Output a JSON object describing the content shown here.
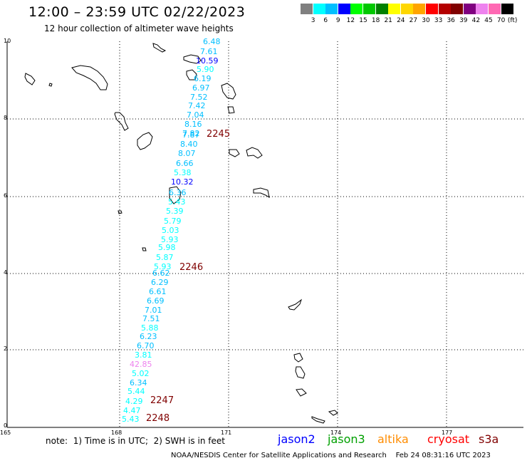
{
  "title": "12:00 – 23:59 UTC 02/22/2023",
  "subtitle": "12 hour collection of altimeter wave heights",
  "scale": {
    "unit": "(ft)",
    "colors": [
      "#808080",
      "#00ffff",
      "#00bfff",
      "#0000ff",
      "#00ff00",
      "#00c800",
      "#008000",
      "#ffff00",
      "#ffd700",
      "#ffa500",
      "#ff0000",
      "#b40000",
      "#800000",
      "#800080",
      "#ee82ee",
      "#ff69b4",
      "#000000"
    ],
    "labels": [
      "3",
      "6",
      "9",
      "12",
      "15",
      "18",
      "21",
      "24",
      "27",
      "30",
      "33",
      "36",
      "39",
      "42",
      "45",
      "70"
    ]
  },
  "axes": {
    "y_ticks": [
      "10",
      "8",
      "6",
      "4",
      "2",
      "0"
    ],
    "x_ticks": [
      "165",
      "168",
      "171",
      "174",
      "177"
    ]
  },
  "pass_labels": [
    "2245",
    "2246",
    "2247",
    "2248"
  ],
  "readings": [
    "6.48",
    "7.61",
    "10.59",
    "5.90",
    "6.19",
    "6.97",
    "7.52",
    "7.42",
    "7.04",
    "8.16",
    "7.82",
    "7.87",
    "8.40",
    "8.07",
    "6.66",
    "5.38",
    "10.32",
    "6.36",
    "5.43",
    "5.39",
    "5.79",
    "5.03",
    "5.93",
    "5.98",
    "5.87",
    "5.93",
    "6.62",
    "6.29",
    "6.61",
    "6.69",
    "7.01",
    "7.51",
    "5.88",
    "6.23",
    "6.70",
    "3.81",
    "42.85",
    "5.02",
    "6.34",
    "5.44",
    "4.29",
    "4.47",
    "5.43"
  ],
  "note": "note:  1) Time is in UTC;  2) SWH is in feet",
  "satellites": {
    "jason2": "jason2",
    "jason3": "jason3",
    "altika": "altika",
    "cryosat": "cryosat",
    "s3a": "s3a",
    "colors": {
      "jason2": "#0000ff",
      "jason3": "#00a000",
      "altika": "#ff8c00",
      "cryosat": "#ff0000",
      "s3a": "#800000"
    }
  },
  "credit": "NOAA/NESDIS Center for Satellite Applications and Research    Feb 24 08:31:16 UTC 2023"
}
